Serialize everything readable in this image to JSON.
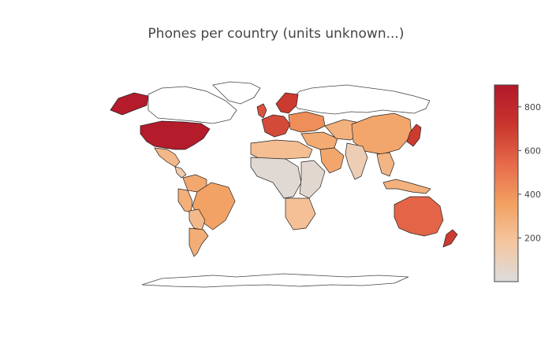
{
  "title": "Phones per country (units unknown...)",
  "colorscale": {
    "min": 0,
    "max": 900,
    "stops": [
      "#dcdcdc",
      "#f5c6a0",
      "#f2a061",
      "#e66a4a",
      "#c8352c",
      "#b2182b"
    ],
    "ticks": [
      200,
      400,
      600,
      800
    ]
  },
  "map": {
    "projection": "equirectangular",
    "no_data_fill": "#ffffff",
    "regions": [
      {
        "name": "United States",
        "value": 880
      },
      {
        "name": "Alaska",
        "value": 880
      },
      {
        "name": "Mexico",
        "value": 250
      },
      {
        "name": "Central America",
        "value": 150
      },
      {
        "name": "Colombia / Venezuela",
        "value": 320
      },
      {
        "name": "Peru / Ecuador",
        "value": 290
      },
      {
        "name": "Brazil",
        "value": 350
      },
      {
        "name": "Bolivia / Paraguay",
        "value": 240
      },
      {
        "name": "Argentina / Chile",
        "value": 300
      },
      {
        "name": "United Kingdom",
        "value": 620
      },
      {
        "name": "Western Europe",
        "value": 650
      },
      {
        "name": "Scandinavia",
        "value": 700
      },
      {
        "name": "Eastern Europe",
        "value": 420
      },
      {
        "name": "Turkey / Middle East",
        "value": 310
      },
      {
        "name": "North Africa",
        "value": 220
      },
      {
        "name": "West & Central Africa",
        "value": 30
      },
      {
        "name": "East Africa",
        "value": 40
      },
      {
        "name": "Southern Africa",
        "value": 210
      },
      {
        "name": "Saudi Arabia / Gulf",
        "value": 330
      },
      {
        "name": "Central Asia",
        "value": 280
      },
      {
        "name": "China",
        "value": 330
      },
      {
        "name": "India",
        "value": 120
      },
      {
        "name": "Southeast Asia",
        "value": 260
      },
      {
        "name": "Japan / Korea",
        "value": 700
      },
      {
        "name": "Indonesia / Philippines",
        "value": 280
      },
      {
        "name": "Australia",
        "value": 560
      },
      {
        "name": "New Zealand",
        "value": 700
      }
    ]
  }
}
